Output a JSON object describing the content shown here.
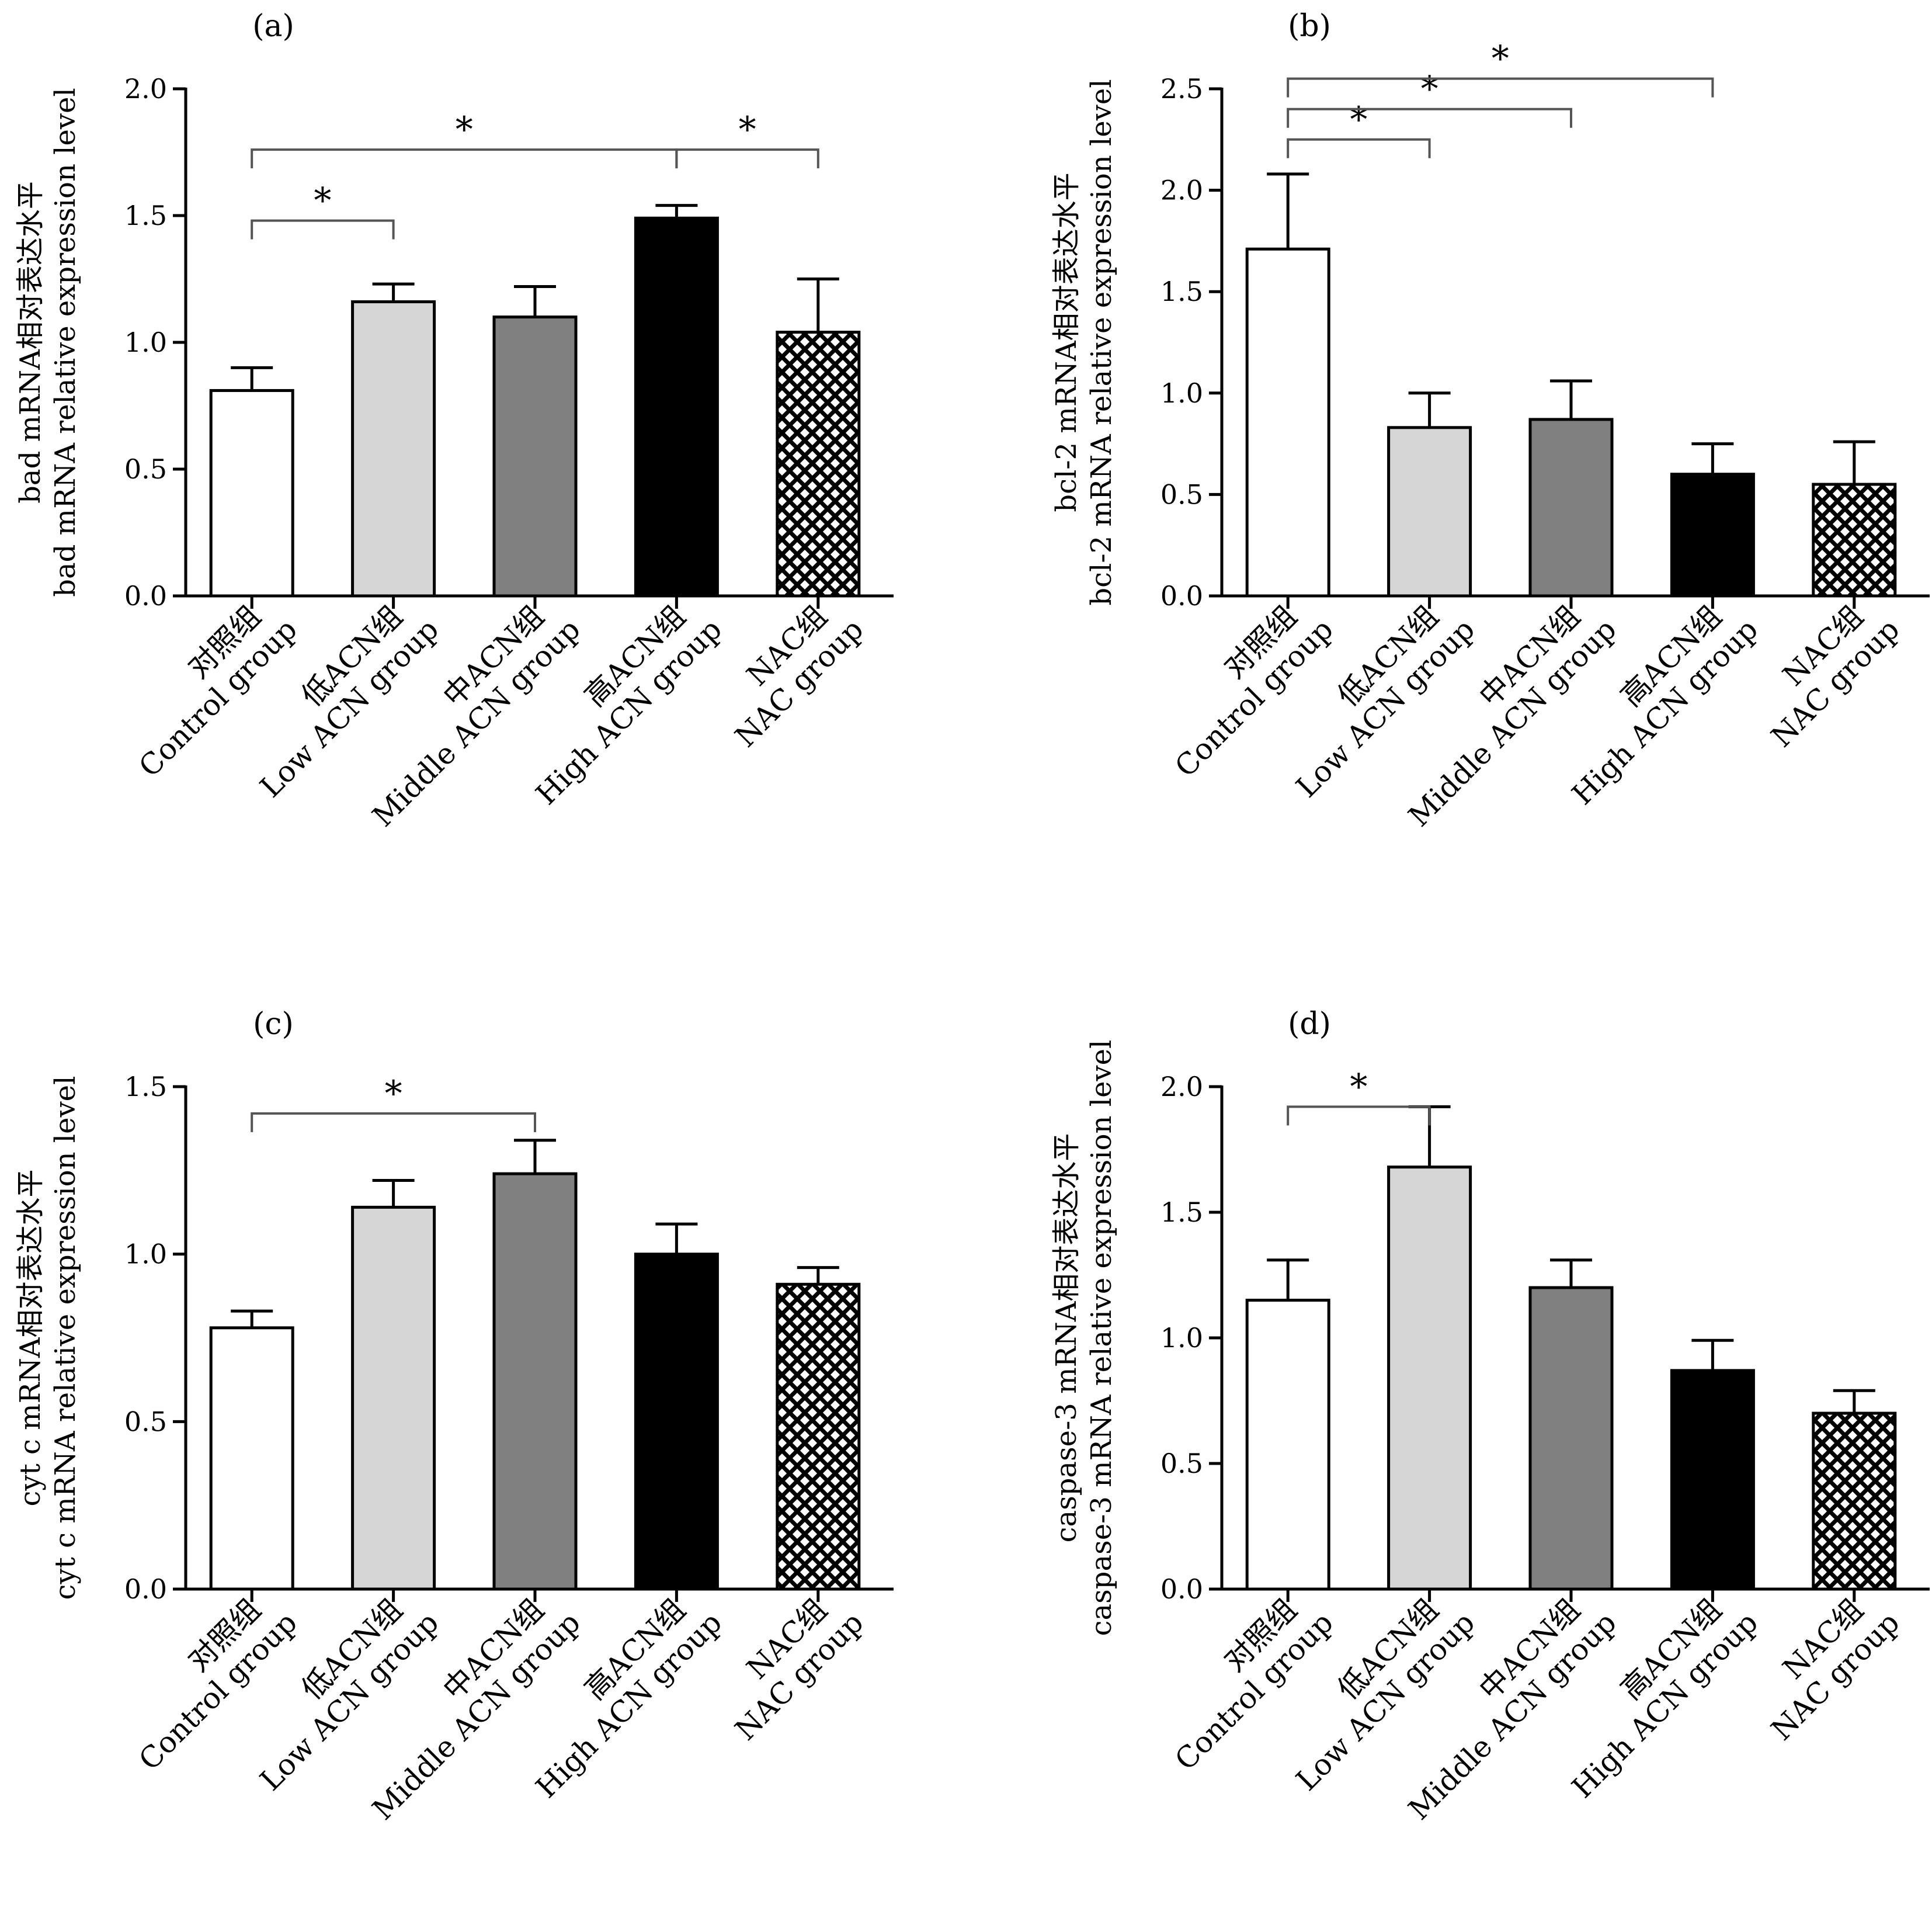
{
  "fills": {
    "Control group": "#ffffff",
    "Low ACN group": "#d6d6d6",
    "Middle ACN group": "#808080",
    "High ACN group": "#000000",
    "NAC group": "pattern:crosshatch"
  },
  "chart_data": [
    {
      "type": "bar",
      "panel": "(a)",
      "ylabel_cn": "bad mRNA相对表达水平",
      "ylabel_en": "bad mRNA relative expression level",
      "ylim": [
        0,
        2.0
      ],
      "yticks": [
        "0.0",
        "0.5",
        "1.0",
        "1.5",
        "2.0"
      ],
      "categories": [
        {
          "cn": "对照组",
          "en": "Control group"
        },
        {
          "cn": "低ACN组",
          "en": "Low ACN group"
        },
        {
          "cn": "中ACN组",
          "en": "Middle ACN group"
        },
        {
          "cn": "高ACN组",
          "en": "High ACN group"
        },
        {
          "cn": "NAC组",
          "en": "NAC group"
        }
      ],
      "values": [
        0.81,
        1.16,
        1.1,
        1.49,
        1.04
      ],
      "errors": [
        0.09,
        0.07,
        0.12,
        0.05,
        0.21
      ],
      "significance": [
        {
          "from": 0,
          "to": 1,
          "label": "*"
        },
        {
          "from": 0,
          "to": 3,
          "label": "*"
        },
        {
          "from": 3,
          "to": 4,
          "label": "*"
        }
      ]
    },
    {
      "type": "bar",
      "panel": "(b)",
      "ylabel_cn": "bcl-2 mRNA相对表达水平",
      "ylabel_en": "bcl-2 mRNA relative expression level",
      "ylim": [
        0,
        2.5
      ],
      "yticks": [
        "0.0",
        "0.5",
        "1.0",
        "1.5",
        "2.0",
        "2.5"
      ],
      "categories": [
        {
          "cn": "对照组",
          "en": "Control group"
        },
        {
          "cn": "低ACN组",
          "en": "Low ACN group"
        },
        {
          "cn": "中ACN组",
          "en": "Middle ACN group"
        },
        {
          "cn": "高ACN组",
          "en": "High ACN group"
        },
        {
          "cn": "NAC组",
          "en": "NAC group"
        }
      ],
      "values": [
        1.71,
        0.83,
        0.87,
        0.6,
        0.55
      ],
      "errors": [
        0.37,
        0.17,
        0.19,
        0.15,
        0.21
      ],
      "significance": [
        {
          "from": 0,
          "to": 1,
          "label": "*"
        },
        {
          "from": 0,
          "to": 2,
          "label": "*"
        },
        {
          "from": 0,
          "to": 3,
          "label": "*"
        }
      ]
    },
    {
      "type": "bar",
      "panel": "(c)",
      "ylabel_cn": "cyt c mRNA相对表达水平",
      "ylabel_en": "cyt c mRNA relative expression level",
      "ylim": [
        0,
        1.5
      ],
      "yticks": [
        "0.0",
        "0.5",
        "1.0",
        "1.5"
      ],
      "categories": [
        {
          "cn": "对照组",
          "en": "Control group"
        },
        {
          "cn": "低ACN组",
          "en": "Low ACN group"
        },
        {
          "cn": "中ACN组",
          "en": "Middle ACN group"
        },
        {
          "cn": "高ACN组",
          "en": "High ACN group"
        },
        {
          "cn": "NAC组",
          "en": "NAC group"
        }
      ],
      "values": [
        0.78,
        1.14,
        1.24,
        1.0,
        0.91
      ],
      "errors": [
        0.05,
        0.08,
        0.1,
        0.09,
        0.05
      ],
      "significance": [
        {
          "from": 0,
          "to": 2,
          "label": "*"
        }
      ]
    },
    {
      "type": "bar",
      "panel": "(d)",
      "ylabel_cn": "caspase-3 mRNA相对表达水平",
      "ylabel_en": "caspase-3 mRNA relative expression level",
      "ylim": [
        0,
        2.0
      ],
      "yticks": [
        "0.0",
        "0.5",
        "1.0",
        "1.5",
        "2.0"
      ],
      "categories": [
        {
          "cn": "对照组",
          "en": "Control group"
        },
        {
          "cn": "低ACN组",
          "en": "Low ACN group"
        },
        {
          "cn": "中ACN组",
          "en": "Middle ACN group"
        },
        {
          "cn": "高ACN组",
          "en": "High ACN group"
        },
        {
          "cn": "NAC组",
          "en": "NAC group"
        }
      ],
      "values": [
        1.15,
        1.68,
        1.2,
        0.87,
        0.7
      ],
      "errors": [
        0.16,
        0.24,
        0.11,
        0.12,
        0.09
      ],
      "significance": [
        {
          "from": 0,
          "to": 1,
          "label": "*"
        }
      ]
    }
  ]
}
